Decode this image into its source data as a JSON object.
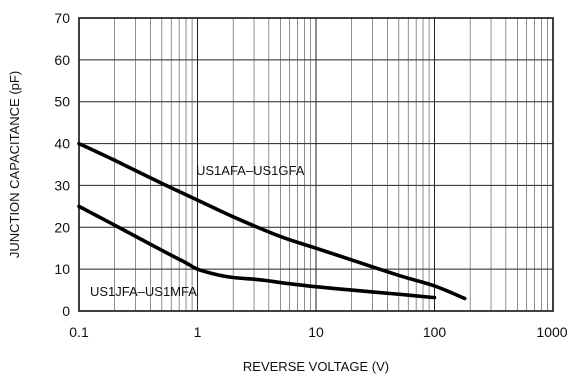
{
  "chart_data": {
    "type": "line",
    "title": "",
    "xlabel": "REVERSE VOLTAGE (V)",
    "ylabel": "JUNCTION CAPACITANCE (pF)",
    "x_scale": "log",
    "xlim": [
      0.1,
      1000
    ],
    "ylim": [
      0,
      70
    ],
    "x_ticks": [
      0.1,
      1,
      10,
      100,
      1000
    ],
    "x_tick_labels": [
      "0.1",
      "1",
      "10",
      "100",
      "1000"
    ],
    "y_ticks": [
      0,
      10,
      20,
      30,
      40,
      50,
      60,
      70
    ],
    "y_tick_labels": [
      "0",
      "10",
      "20",
      "30",
      "40",
      "50",
      "60",
      "70"
    ],
    "grid": true,
    "series": [
      {
        "name": "US1AFA–US1GFA",
        "x": [
          0.1,
          0.2,
          0.5,
          1,
          2,
          5,
          10,
          20,
          50,
          100,
          180
        ],
        "y": [
          40,
          36,
          30.5,
          26.5,
          22.5,
          17.8,
          15,
          12.2,
          8.5,
          6,
          3
        ]
      },
      {
        "name": "US1JFA–US1MFA",
        "x": [
          0.1,
          0.2,
          0.5,
          0.8,
          1,
          1.5,
          2,
          3,
          4,
          5,
          10,
          20,
          50,
          100
        ],
        "y": [
          25,
          20.5,
          14.5,
          11.5,
          10,
          8.6,
          8,
          7.6,
          7.2,
          6.8,
          5.8,
          5,
          4,
          3.2
        ]
      }
    ]
  }
}
